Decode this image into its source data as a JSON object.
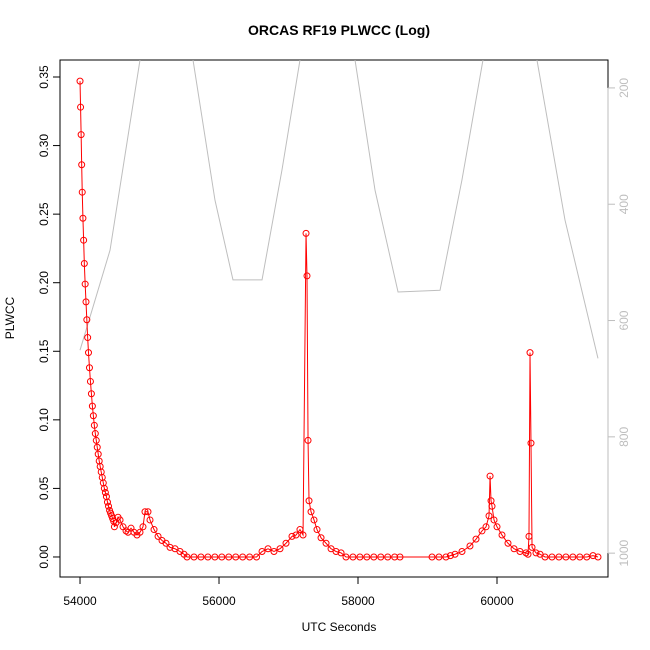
{
  "chart_data": {
    "type": "line",
    "title": "ORCAS RF19 PLWCC (Log)",
    "x_label": "UTC Seconds",
    "y_label": "PLWCC",
    "xlim": [
      53712,
      61597
    ],
    "ylim": [
      -0.0146,
      0.3624
    ],
    "y2lim": [
      1041,
      152
    ],
    "xticks": [
      54000,
      56000,
      58000,
      60000
    ],
    "yticks": [
      {
        "value": 0,
        "label": "0.00"
      },
      {
        "value": 0.05,
        "label": "0.05"
      },
      {
        "value": 0.1,
        "label": "0.10"
      },
      {
        "value": 0.15,
        "label": "0.15"
      },
      {
        "value": 0.2,
        "label": "0.20"
      },
      {
        "value": 0.25,
        "label": "0.25"
      },
      {
        "value": 0.3,
        "label": "0.30"
      },
      {
        "value": 0.35,
        "label": "0.35"
      }
    ],
    "y2ticks": [
      200,
      400,
      600,
      800,
      1000
    ],
    "series": [
      {
        "color": "#ff0000",
        "markers": true,
        "x": [
          54000,
          54008,
          54016,
          54024,
          54032,
          54042,
          54052,
          54062,
          54074,
          54086,
          54098,
          54110,
          54122,
          54136,
          54150,
          54164,
          54178,
          54192,
          54206,
          54220,
          54234,
          54248,
          54262,
          54276,
          54290,
          54305,
          54320,
          54335,
          54350,
          54365,
          54380,
          54395,
          54410,
          54425,
          54440,
          54455,
          54470,
          54485,
          54495,
          54518,
          54547,
          54576,
          54619,
          54662,
          54691,
          54734,
          54777,
          54820,
          54863,
          54906,
          54935,
          54978,
          55007,
          55065,
          55123,
          55180,
          55237,
          55295,
          55367,
          55439,
          55496,
          55540,
          55640,
          55740,
          55840,
          55940,
          56040,
          56140,
          56240,
          56340,
          56440,
          56540,
          56619,
          56705,
          56791,
          56878,
          56964,
          57050,
          57108,
          57165,
          57209,
          57252,
          57266,
          57281,
          57295,
          57324,
          57367,
          57410,
          57468,
          57540,
          57612,
          57684,
          57756,
          57827,
          57927,
          58027,
          58127,
          58227,
          58327,
          58427,
          58527,
          58604,
          59065,
          59165,
          59265,
          59330,
          59396,
          59496,
          59611,
          59698,
          59784,
          59842,
          59885,
          59900,
          59914,
          59928,
          59957,
          60000,
          60072,
          60158,
          60245,
          60331,
          60417,
          60446,
          60460,
          60475,
          60489,
          60504,
          60561,
          60619,
          60691,
          60791,
          60891,
          60991,
          61091,
          61191,
          61291,
          61381,
          61453
        ],
        "values": [
          0.347,
          0.328,
          0.308,
          0.286,
          0.266,
          0.247,
          0.231,
          0.214,
          0.199,
          0.186,
          0.173,
          0.16,
          0.149,
          0.138,
          0.128,
          0.119,
          0.11,
          0.103,
          0.096,
          0.09,
          0.085,
          0.08,
          0.075,
          0.07,
          0.066,
          0.062,
          0.058,
          0.054,
          0.05,
          0.047,
          0.044,
          0.04,
          0.037,
          0.034,
          0.032,
          0.03,
          0.028,
          0.026,
          0.022,
          0.025,
          0.029,
          0.027,
          0.022,
          0.019,
          0.018,
          0.021,
          0.018,
          0.016,
          0.018,
          0.022,
          0.033,
          0.033,
          0.027,
          0.02,
          0.015,
          0.012,
          0.01,
          0.007,
          0.006,
          0.004,
          0.002,
          0,
          0,
          0,
          0,
          0,
          0,
          0,
          0,
          0,
          0,
          0,
          0.004,
          0.006,
          0.004,
          0.006,
          0.01,
          0.015,
          0.016,
          0.02,
          0.016,
          0.236,
          0.205,
          0.085,
          0.041,
          0.033,
          0.027,
          0.02,
          0.014,
          0.01,
          0.006,
          0.004,
          0.003,
          0,
          0,
          0,
          0,
          0,
          0,
          0,
          0,
          0,
          0,
          0,
          0,
          0.001,
          0.002,
          0.004,
          0.008,
          0.013,
          0.019,
          0.022,
          0.03,
          0.059,
          0.041,
          0.037,
          0.027,
          0.022,
          0.016,
          0.01,
          0.006,
          0.004,
          0.003,
          0.002,
          0.015,
          0.149,
          0.083,
          0.007,
          0.003,
          0.002,
          0,
          0,
          0,
          0,
          0,
          0,
          0,
          0.001,
          0
        ]
      },
      {
        "color": "#bebebe",
        "axis": "y2",
        "markers": false,
        "x": [
          54000,
          54432,
          54863,
          null,
          55626,
          55942,
          56201,
          56619,
          56906,
          57165,
          null,
          57957,
          58245,
          58576,
          59180,
          59496,
          59798,
          null,
          60575,
          60978,
          61453
        ],
        "values": [
          651,
          479,
          152,
          null,
          152,
          393,
          530,
          530,
          341,
          152,
          null,
          152,
          376,
          551,
          548,
          358,
          152,
          null,
          152,
          427,
          665
        ]
      }
    ]
  }
}
